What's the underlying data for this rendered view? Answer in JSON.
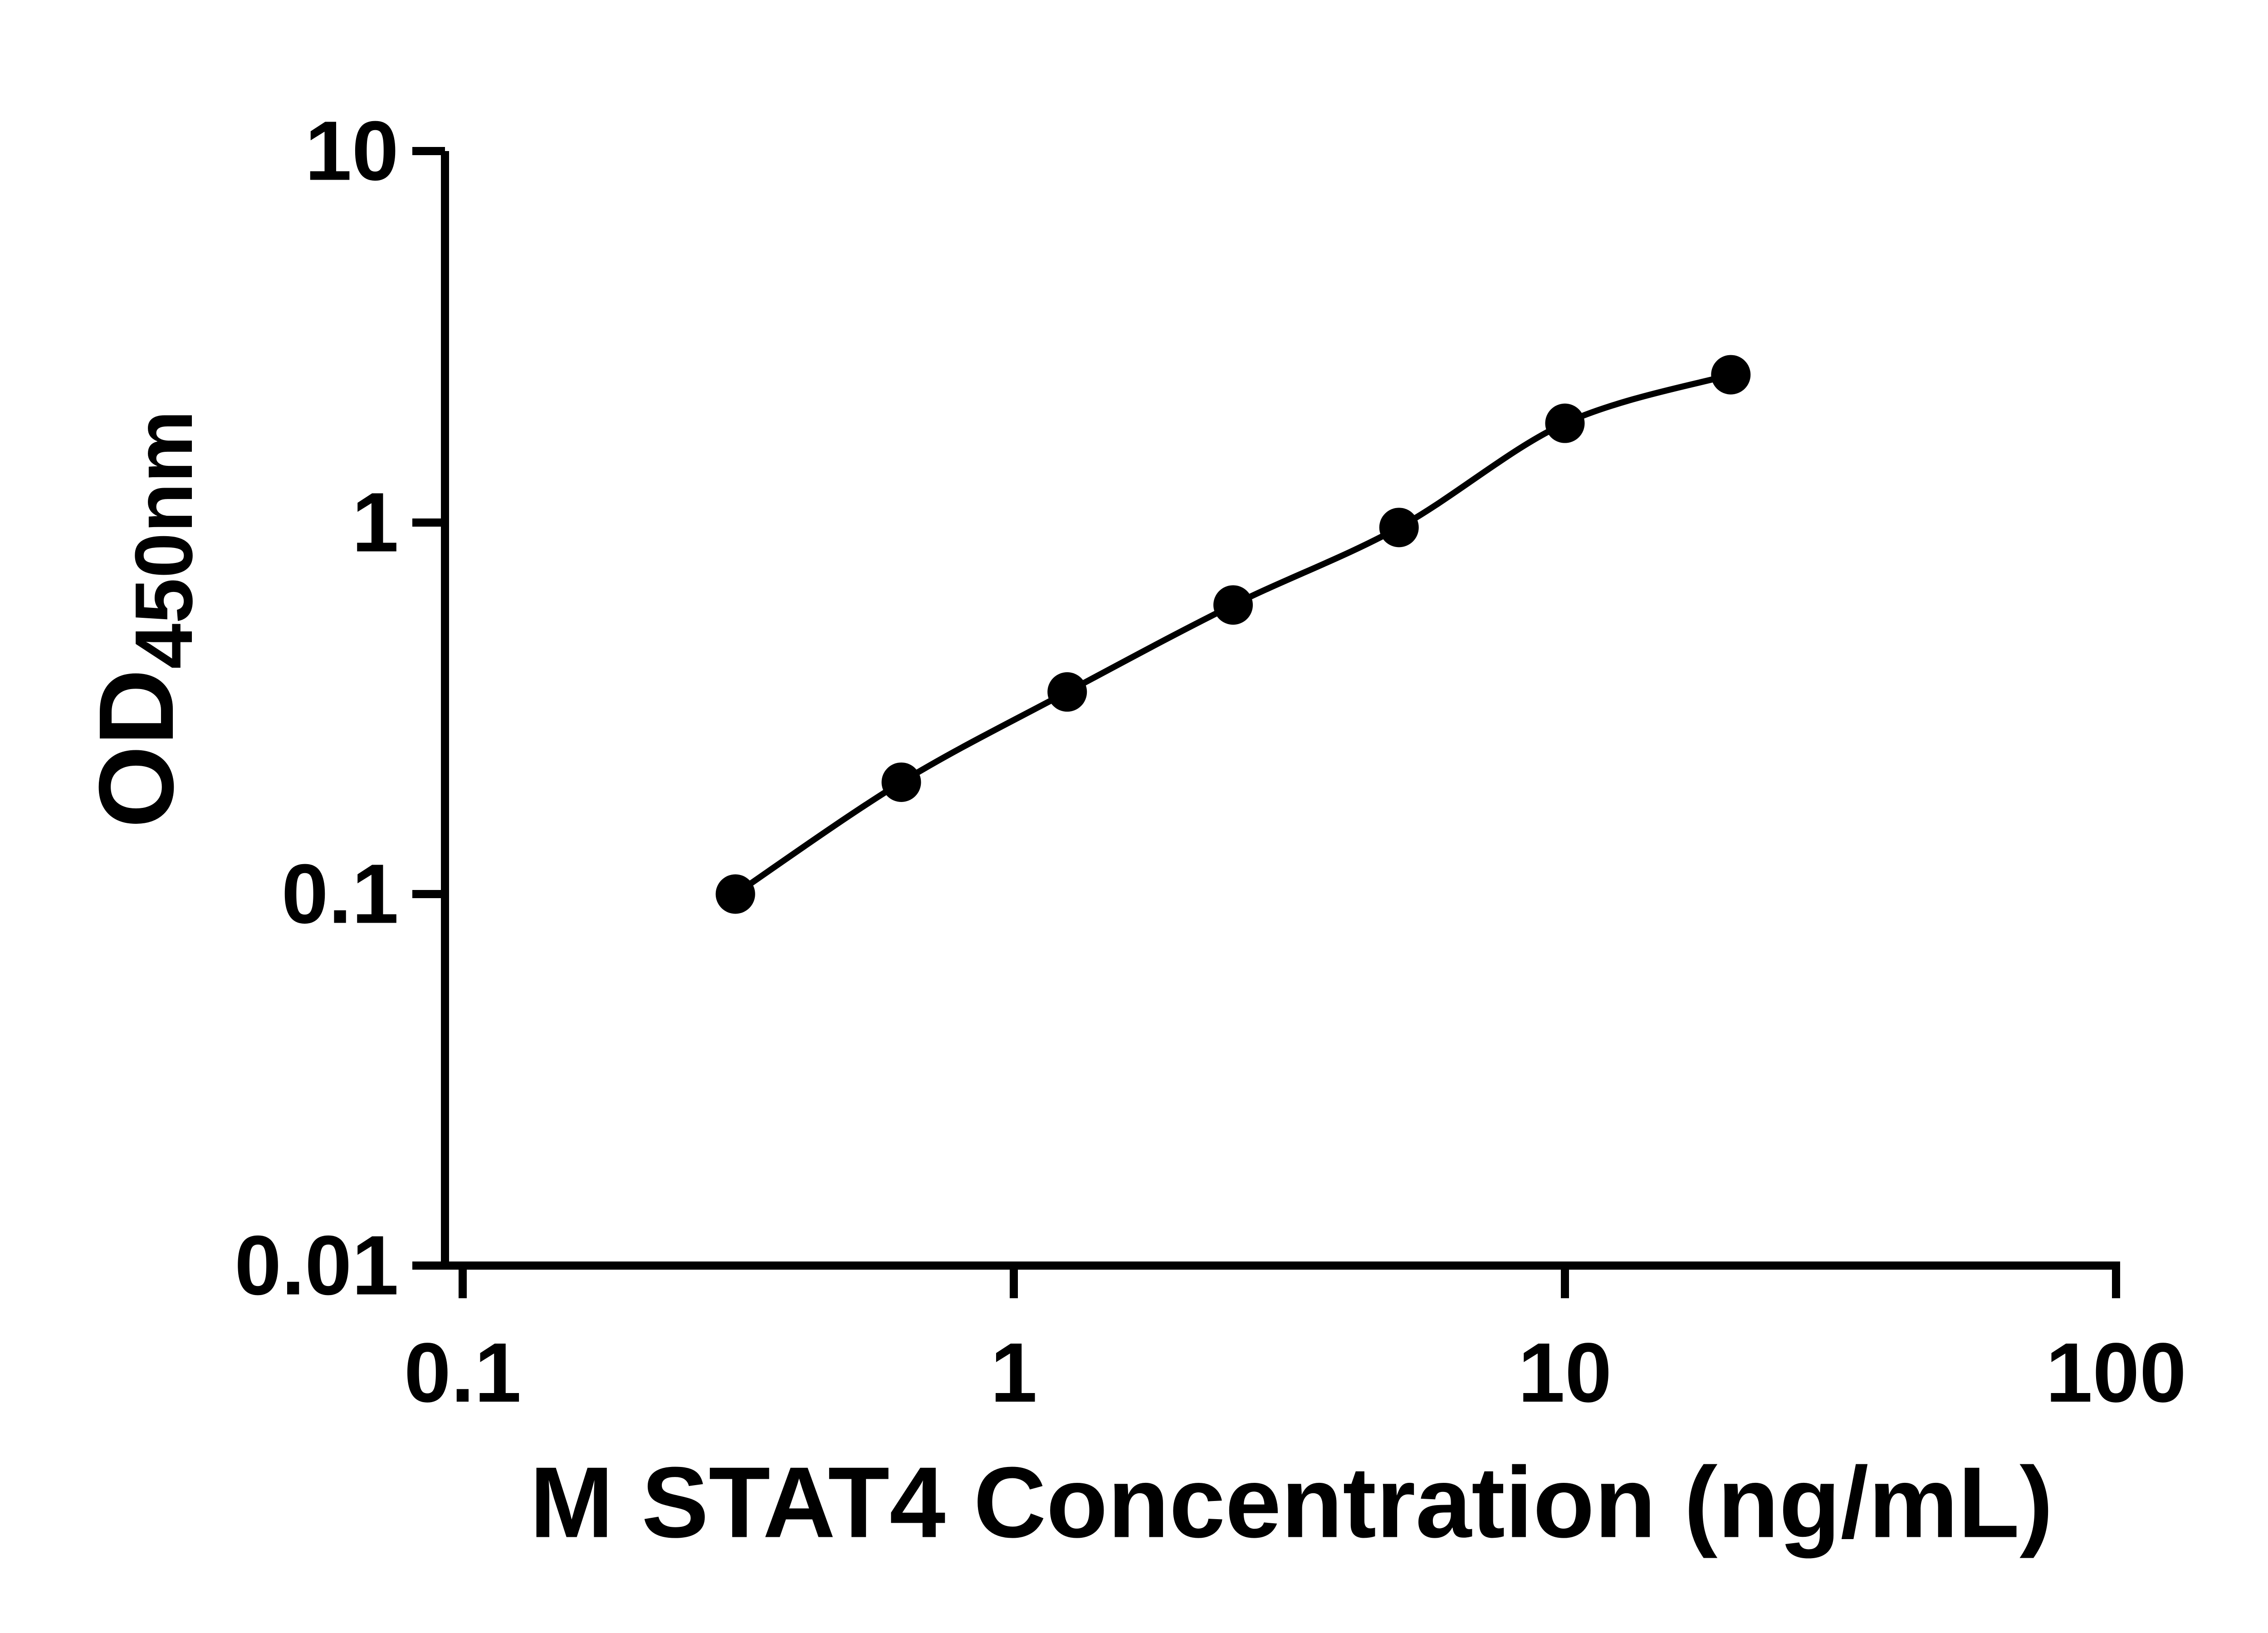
{
  "figure": {
    "background": "#ffffff"
  },
  "chart_data": {
    "type": "scatter",
    "title": "",
    "xlabel": "M STAT4 Concentration (ng/mL)",
    "ylabel": "OD450nm",
    "ylabel_main": "OD",
    "ylabel_sub": "450nm",
    "xscale": "log",
    "yscale": "log",
    "xlim": [
      0.1,
      100
    ],
    "ylim": [
      0.01,
      10
    ],
    "x_tick_values": [
      0.1,
      1,
      10,
      100
    ],
    "x_tick_labels": [
      "0.1",
      "1",
      "10",
      "100"
    ],
    "y_tick_values": [
      10,
      1,
      0.1,
      0.01
    ],
    "y_tick_labels": [
      "10",
      "1",
      "0.1",
      "0.01"
    ],
    "grid": false,
    "legend": false,
    "axis_color": "#000000",
    "series": [
      {
        "x": [
          0.3125,
          0.625,
          1.25,
          2.5,
          5,
          10,
          20
        ],
        "y": [
          0.1,
          0.2,
          0.35,
          0.6,
          0.97,
          1.85,
          2.5
        ],
        "marker": "circle",
        "marker_color": "#000000",
        "line_color": "#000000"
      }
    ]
  }
}
